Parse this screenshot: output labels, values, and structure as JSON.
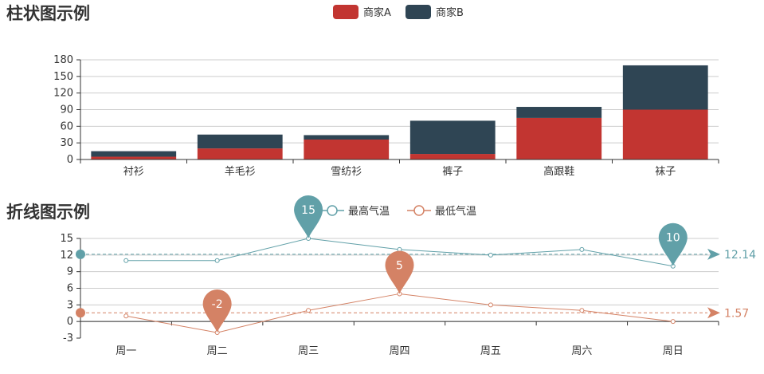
{
  "colors": {
    "seriesA": "#c23531",
    "seriesB": "#2f4554",
    "high": "#61a0a8",
    "low": "#d48265",
    "axis": "#333333",
    "grid": "#cccccc",
    "text": "#333333"
  },
  "chart_data": [
    {
      "type": "bar",
      "stacked": true,
      "title": "柱状图示例",
      "categories": [
        "衬衫",
        "羊毛衫",
        "雪纺衫",
        "裤子",
        "高跟鞋",
        "袜子"
      ],
      "series": [
        {
          "name": "商家A",
          "values": [
            5,
            20,
            36,
            10,
            75,
            90
          ]
        },
        {
          "name": "商家B",
          "values": [
            10,
            25,
            8,
            60,
            20,
            80
          ]
        }
      ],
      "ylim": [
        0,
        180
      ],
      "yticks": [
        0,
        30,
        60,
        90,
        120,
        150,
        180
      ],
      "grid": true,
      "legend": "top-center"
    },
    {
      "type": "line",
      "title": "折线图示例",
      "categories": [
        "周一",
        "周二",
        "周三",
        "周四",
        "周五",
        "周六",
        "周日"
      ],
      "series": [
        {
          "name": "最高气温",
          "values": [
            11,
            11,
            15,
            13,
            12,
            13,
            10
          ],
          "max_label": "15",
          "min_label": "10",
          "average": 12.14,
          "average_label": "12.14"
        },
        {
          "name": "最低气温",
          "values": [
            1,
            -2,
            2,
            5,
            3,
            2,
            0
          ],
          "max_label": "5",
          "min_label": "-2",
          "average": 1.57,
          "average_label": "1.57"
        }
      ],
      "ylim": [
        -3,
        15
      ],
      "yticks": [
        -3,
        0,
        3,
        6,
        9,
        12,
        15
      ],
      "grid": true,
      "legend": "top-center"
    }
  ]
}
